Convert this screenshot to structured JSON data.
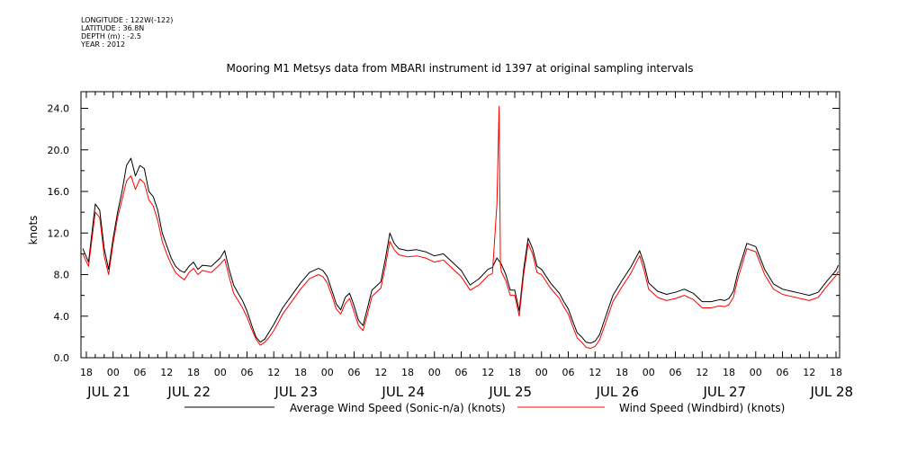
{
  "metadata": {
    "longitude": "LONGITUDE : 122W(-122)",
    "latitude": "LATITUDE : 36.8N",
    "depth": "DEPTH (m) : -2.5",
    "year": "YEAR : 2012"
  },
  "chart_data": {
    "type": "line",
    "title": "Mooring M1 Metsys data from MBARI instrument id 1397 at original sampling intervals",
    "ylabel": "knots",
    "xlabel": "",
    "ylim": [
      0,
      25.6
    ],
    "yticks": [
      0,
      4,
      8,
      12,
      16,
      20,
      24
    ],
    "ytick_labels": [
      "0.0",
      "4.0",
      "8.0",
      "12.0",
      "16.0",
      "20.0",
      "24.0"
    ],
    "xlim_hours": [
      -7.2,
      7.0
    ],
    "x_unit": "hours relative to 2012-07-21 00:00",
    "x_minor_step_hours": 2,
    "x_ticks": [
      {
        "hour": -6,
        "label": "18"
      },
      {
        "hour": 0,
        "label": "00"
      },
      {
        "hour": 6,
        "label": "06"
      },
      {
        "hour": 12,
        "label": "12"
      },
      {
        "hour": 18,
        "label": "18"
      },
      {
        "hour": 24,
        "label": "00"
      },
      {
        "hour": 30,
        "label": "06"
      },
      {
        "hour": 36,
        "label": "12"
      },
      {
        "hour": 42,
        "label": "18"
      },
      {
        "hour": 48,
        "label": "00"
      },
      {
        "hour": 54,
        "label": "06"
      },
      {
        "hour": 60,
        "label": "12"
      },
      {
        "hour": 66,
        "label": "18"
      },
      {
        "hour": 72,
        "label": "00"
      },
      {
        "hour": 78,
        "label": "06"
      },
      {
        "hour": 84,
        "label": "12"
      },
      {
        "hour": 90,
        "label": "18"
      },
      {
        "hour": 96,
        "label": "00"
      },
      {
        "hour": 102,
        "label": "06"
      },
      {
        "hour": 108,
        "label": "12"
      },
      {
        "hour": 114,
        "label": "18"
      },
      {
        "hour": 120,
        "label": "00"
      },
      {
        "hour": 126,
        "label": "06"
      },
      {
        "hour": 132,
        "label": "12"
      },
      {
        "hour": 138,
        "label": "18"
      },
      {
        "hour": 144,
        "label": "00"
      },
      {
        "hour": 150,
        "label": "06"
      },
      {
        "hour": 156,
        "label": "12"
      },
      {
        "hour": 162,
        "label": "18"
      }
    ],
    "day_labels": [
      {
        "hour": -6,
        "label": "JUL 21"
      },
      {
        "hour": 12,
        "label": "JUL 22"
      },
      {
        "hour": 36,
        "label": "JUL 23"
      },
      {
        "hour": 60,
        "label": "JUL 24"
      },
      {
        "hour": 84,
        "label": "JUL 25"
      },
      {
        "hour": 108,
        "label": "JUL 26"
      },
      {
        "hour": 132,
        "label": "JUL 27"
      },
      {
        "hour": 156,
        "label": "JUL 28"
      }
    ],
    "series": [
      {
        "name": "Average Wind Speed (Sonic-n/a) (knots)",
        "color": "#000000",
        "x": [
          -6.8,
          -5.5,
          -4,
          -3,
          -2,
          -1,
          0,
          1,
          2,
          3,
          4,
          5,
          6,
          7,
          8,
          9,
          10,
          11,
          12,
          13,
          14,
          15,
          16,
          17,
          18,
          19,
          20,
          22,
          24,
          25,
          26,
          27,
          28,
          29,
          30,
          31,
          32,
          33,
          34,
          35,
          36,
          37,
          38,
          40,
          42,
          44,
          46,
          47,
          48,
          49,
          50,
          51,
          52,
          53,
          54,
          55,
          56,
          57,
          58,
          59,
          60,
          61,
          62,
          63,
          64,
          66,
          68,
          70,
          72,
          74,
          76,
          78,
          80,
          82,
          84,
          85,
          86,
          87,
          88,
          89,
          90,
          91,
          92,
          93,
          94,
          95,
          96,
          98,
          100,
          101,
          102,
          103,
          104,
          105,
          106,
          107,
          108,
          109,
          110,
          112,
          114,
          116,
          118,
          119,
          120,
          122,
          124,
          126,
          128,
          130,
          132,
          134,
          136,
          137,
          138,
          139,
          140,
          142,
          144,
          146,
          148,
          150,
          152,
          154,
          156,
          158,
          160,
          162,
          162.5
        ],
        "y": [
          10.5,
          9.2,
          14.8,
          14.2,
          10.5,
          8.5,
          11.5,
          14,
          16,
          18.5,
          19.2,
          17.5,
          18.5,
          18.2,
          16,
          15.5,
          14.2,
          12,
          10.8,
          9.6,
          8.8,
          8.4,
          8.2,
          8.8,
          9.2,
          8.5,
          8.9,
          8.8,
          9.6,
          10.3,
          8.5,
          7,
          6.2,
          5.5,
          4.5,
          3.2,
          2,
          1.5,
          1.8,
          2.5,
          3.2,
          4,
          4.8,
          6,
          7.2,
          8.2,
          8.6,
          8.4,
          7.8,
          6.5,
          5.2,
          4.6,
          5.8,
          6.2,
          5,
          3.6,
          3.1,
          4.8,
          6.5,
          6.9,
          7.3,
          9.5,
          12,
          11,
          10.5,
          10.3,
          10.4,
          10.2,
          9.8,
          10,
          9.2,
          8.4,
          7,
          7.6,
          8.5,
          8.7,
          9.6,
          9,
          8,
          6.5,
          6.5,
          4.5,
          8.5,
          11.5,
          10.5,
          8.8,
          8.5,
          7.2,
          6.2,
          5.4,
          4.7,
          3.5,
          2.4,
          2,
          1.5,
          1.4,
          1.6,
          2.2,
          3.5,
          6,
          7.4,
          8.7,
          10.3,
          9,
          7.2,
          6.4,
          6.1,
          6.3,
          6.6,
          6.2,
          5.4,
          5.4,
          5.6,
          5.5,
          5.7,
          6.4,
          8.2,
          11,
          10.7,
          8.5,
          7.1,
          6.6,
          6.4,
          6.2,
          6,
          6.3,
          7.4,
          8.4,
          8.9
        ]
      },
      {
        "name": "Wind Speed (Windbird) (knots)",
        "color": "#ff0000",
        "x": [
          -6.8,
          -5.5,
          -4,
          -3,
          -2,
          -1,
          0,
          1,
          2,
          3,
          4,
          5,
          6,
          7,
          8,
          9,
          10,
          11,
          12,
          13,
          14,
          15,
          16,
          17,
          18,
          19,
          20,
          22,
          24,
          25,
          26,
          27,
          28,
          29,
          30,
          31,
          32,
          33,
          34,
          35,
          36,
          37,
          38,
          40,
          42,
          44,
          46,
          47,
          48,
          49,
          50,
          51,
          52,
          53,
          54,
          55,
          56,
          57,
          58,
          59,
          60,
          61,
          62,
          63,
          64,
          66,
          68,
          70,
          72,
          74,
          76,
          78,
          80,
          82,
          84,
          85,
          86,
          86.5,
          86.8,
          87,
          88,
          89,
          90,
          91,
          92,
          93,
          94,
          95,
          96,
          98,
          100,
          101,
          102,
          103,
          104,
          105,
          106,
          107,
          108,
          109,
          110,
          112,
          114,
          116,
          118,
          119,
          120,
          122,
          124,
          126,
          128,
          130,
          132,
          134,
          136,
          137,
          138,
          139,
          140,
          142,
          144,
          146,
          148,
          150,
          152,
          154,
          156,
          158,
          160,
          162,
          162.5
        ],
        "y": [
          10,
          8.8,
          14,
          13.5,
          9.8,
          8,
          11,
          13.5,
          15.2,
          17,
          17.5,
          16.2,
          17.2,
          16.8,
          15.2,
          14.6,
          13.2,
          11.2,
          10,
          9,
          8.2,
          7.8,
          7.5,
          8.2,
          8.6,
          8,
          8.4,
          8.2,
          9,
          9.5,
          7.8,
          6.2,
          5.5,
          4.8,
          3.9,
          2.8,
          1.8,
          1.2,
          1.5,
          2,
          2.6,
          3.4,
          4.2,
          5.4,
          6.6,
          7.6,
          8,
          7.8,
          7.2,
          6,
          4.7,
          4.2,
          5.2,
          5.7,
          4.4,
          3.1,
          2.6,
          4.2,
          5.9,
          6.3,
          6.7,
          8.8,
          11.2,
          10.4,
          9.9,
          9.7,
          9.8,
          9.6,
          9.2,
          9.4,
          8.6,
          7.8,
          6.5,
          7,
          7.9,
          8.1,
          14.8,
          24.2,
          9,
          8.3,
          7.4,
          6,
          6,
          4,
          8,
          11,
          10,
          8.2,
          8,
          6.7,
          5.7,
          4.9,
          4.2,
          3,
          1.9,
          1.5,
          1,
          0.9,
          1.1,
          1.7,
          2.9,
          5.4,
          6.8,
          8.1,
          9.8,
          8.4,
          6.6,
          5.8,
          5.5,
          5.7,
          6,
          5.6,
          4.8,
          4.8,
          5,
          4.9,
          5.1,
          5.8,
          7.6,
          10.5,
          10.2,
          8,
          6.6,
          6.1,
          5.9,
          5.7,
          5.5,
          5.8,
          6.9,
          7.9,
          8.3
        ]
      }
    ]
  }
}
